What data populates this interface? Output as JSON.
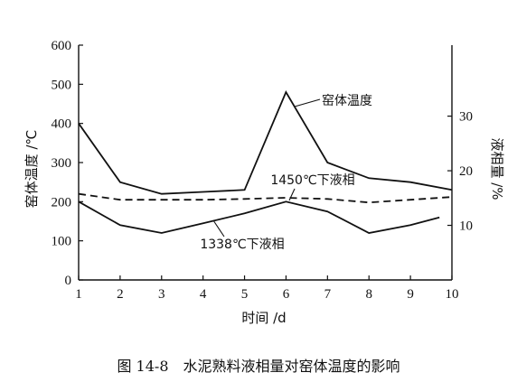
{
  "chart_data": {
    "type": "line",
    "title": "",
    "caption": "图 14-8　水泥熟料液相量对窑体温度的影响",
    "xlabel": "时间 /d",
    "ylabel_left": "窑体温度 /℃",
    "ylabel_right": "液相量 /%",
    "x_ticks": [
      1,
      2,
      3,
      4,
      5,
      6,
      7,
      8,
      9,
      10
    ],
    "xlim": [
      1,
      10
    ],
    "y_left_ticks": [
      0,
      100,
      200,
      300,
      400,
      500,
      600
    ],
    "ylim_left": [
      0,
      600
    ],
    "y_right_ticks": [
      10,
      20,
      30
    ],
    "ylim_right": [
      0,
      43
    ],
    "grid": false,
    "legend": "none",
    "series": [
      {
        "name": "窑体温度",
        "axis": "left",
        "style": "solid",
        "x": [
          1,
          2,
          3,
          4,
          5,
          6,
          7,
          8,
          9,
          10
        ],
        "y": [
          400,
          250,
          220,
          225,
          230,
          480,
          300,
          260,
          250,
          230
        ]
      },
      {
        "name": "1450℃下液相",
        "axis": "left",
        "style": "dashed",
        "x": [
          1,
          2,
          3,
          4,
          5,
          6,
          7,
          8,
          9,
          10
        ],
        "y": [
          220,
          205,
          205,
          205,
          207,
          210,
          207,
          198,
          205,
          212
        ]
      },
      {
        "name": "1338℃下液相",
        "axis": "left",
        "style": "solid",
        "x": [
          1,
          2,
          3,
          4,
          5,
          6,
          7,
          8,
          9,
          9.7
        ],
        "y": [
          200,
          140,
          120,
          145,
          170,
          200,
          175,
          120,
          140,
          160
        ]
      }
    ]
  }
}
